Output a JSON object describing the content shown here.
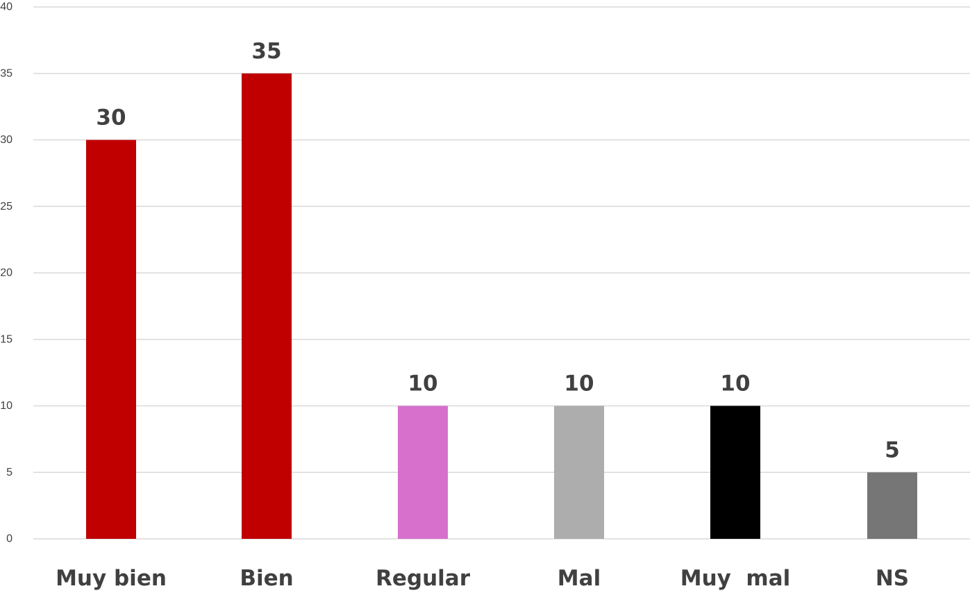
{
  "chart_data": {
    "type": "bar",
    "title": "",
    "xlabel": "",
    "ylabel": "",
    "categories": [
      "Muy bien",
      "Bien",
      "Regular",
      "Mal",
      "Muy  mal",
      "NS"
    ],
    "values": [
      30,
      35,
      10,
      10,
      10,
      5
    ],
    "data_labels": [
      "30",
      "35",
      "10",
      "10",
      "10",
      "5"
    ],
    "bar_colors": [
      "#c00000",
      "#c00000",
      "#d670cc",
      "#adadad",
      "#000000",
      "#767676"
    ],
    "ylim": [
      0,
      40
    ],
    "yticks": [
      0,
      5,
      10,
      15,
      20,
      25,
      30,
      35,
      40
    ],
    "grid": true,
    "legend": "none"
  }
}
